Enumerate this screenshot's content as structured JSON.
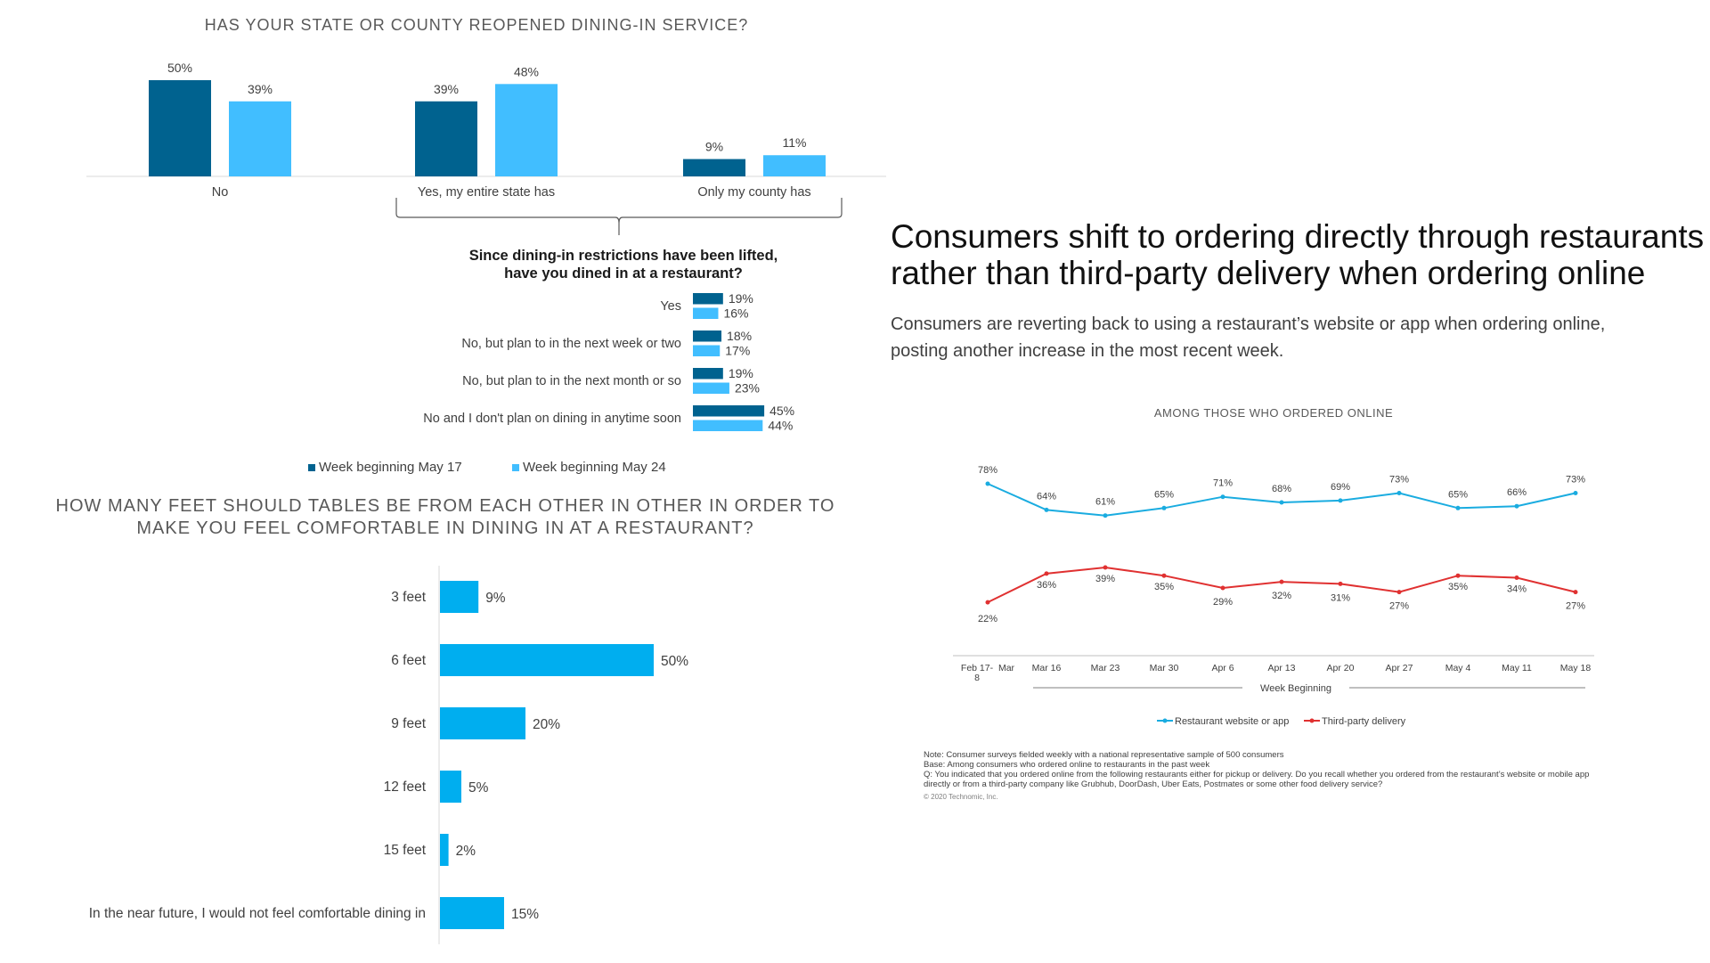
{
  "dining_reopen": {
    "title": "HAS YOUR STATE OR COUNTY REOPENED DINING-IN SERVICE?",
    "legend": [
      "Week beginning May 17",
      "Week beginning May 24"
    ],
    "colors": [
      "#00628F",
      "#41BEFF"
    ]
  },
  "dined_in": {
    "title_line1": "Since dining-in restrictions have been lifted,",
    "title_line2": "have you dined in at a restaurant?"
  },
  "legend_labels": {
    "week1": "Week beginning May 17",
    "week2": "Week beginning May 24"
  },
  "table_distance": {
    "title_line1": "HOW MANY FEET SHOULD TABLES BE FROM EACH OTHER IN OTHER IN ORDER TO",
    "title_line2": "MAKE YOU FEEL COMFORTABLE IN DINING IN AT A RESTAURANT?",
    "color": "#00AEEF"
  },
  "headline": {
    "title_line1": "Consumers shift to ordering directly through restaurants",
    "title_line2": "rather than third-party delivery when ordering online",
    "subtitle_line1": "Consumers are reverting back to using a restaurant’s website or app when ordering online,",
    "subtitle_line2": "posting another increase in the most recent week."
  },
  "online_orders": {
    "title": "AMONG THOSE WHO ORDERED ONLINE",
    "x_axis_label": "Week Beginning",
    "colors": [
      "#1AACE0",
      "#E03131"
    ]
  },
  "notes": {
    "line1": "Note: Consumer surveys fielded weekly with a national representative sample of 500 consumers",
    "line2": "Base: Among consumers who ordered online to restaurants in the past week",
    "line3": "Q: You indicated that you ordered online from the following restaurants either for pickup or delivery.  Do you recall whether you ordered from the restaurant’s website or mobile app",
    "line4": "directly or from a third-party company like Grubhub, DoorDash, Uber Eats, Postmates or some other food delivery service?",
    "copyright": "© 2020 Technomic, Inc."
  },
  "chart_data": [
    {
      "type": "bar",
      "title": "HAS YOUR STATE OR COUNTY REOPENED DINING-IN SERVICE?",
      "categories": [
        "No",
        "Yes, my entire state has",
        "Only my county has"
      ],
      "series": [
        {
          "name": "Week beginning May 17",
          "values": [
            50,
            39,
            9
          ]
        },
        {
          "name": "Week beginning May 24",
          "values": [
            39,
            48,
            11
          ]
        }
      ],
      "unit": "%",
      "legend": "bottom"
    },
    {
      "type": "bar",
      "orientation": "horizontal",
      "title": "Since dining-in restrictions have been lifted, have you dined in at a restaurant?",
      "categories": [
        "Yes",
        "No, but plan to in the next week or two",
        "No, but plan to in the next month or so",
        "No and I don't plan on dining in anytime soon"
      ],
      "series": [
        {
          "name": "Week beginning May 17",
          "values": [
            19,
            18,
            19,
            45
          ]
        },
        {
          "name": "Week beginning May 24",
          "values": [
            16,
            17,
            23,
            44
          ]
        }
      ],
      "unit": "%"
    },
    {
      "type": "bar",
      "orientation": "horizontal",
      "title": "HOW MANY FEET SHOULD TABLES BE FROM EACH OTHER IN OTHER IN ORDER TO MAKE YOU FEEL COMFORTABLE IN DINING IN AT A RESTAURANT?",
      "categories": [
        "3 feet",
        "6 feet",
        "9 feet",
        "12 feet",
        "15 feet",
        "In the near future, I would not feel comfortable dining in"
      ],
      "values": [
        9,
        50,
        20,
        5,
        2,
        15
      ],
      "unit": "%"
    },
    {
      "type": "line",
      "title": "AMONG THOSE WHO ORDERED ONLINE",
      "xlabel": "Week Beginning",
      "x": [
        "Feb 17-Mar 8",
        "Mar 16",
        "Mar 23",
        "Mar 30",
        "Apr 6",
        "Apr 13",
        "Apr 20",
        "Apr 27",
        "May 4",
        "May 11",
        "May 18"
      ],
      "x_display": [
        [
          "Feb 17-",
          "8"
        ],
        [
          "Mar 16"
        ],
        [
          "Mar 23"
        ],
        [
          "Mar 30"
        ],
        [
          "Apr 6"
        ],
        [
          "Apr 13"
        ],
        [
          "Apr 20"
        ],
        [
          "Apr 27"
        ],
        [
          "May 4"
        ],
        [
          "May 11"
        ],
        [
          "May 18"
        ]
      ],
      "x_extra_label": "Mar",
      "series": [
        {
          "name": "Restaurant website or app",
          "values": [
            78,
            64,
            61,
            65,
            71,
            68,
            69,
            73,
            65,
            66,
            73
          ]
        },
        {
          "name": "Third-party delivery",
          "values": [
            22,
            36,
            39,
            35,
            29,
            32,
            31,
            27,
            35,
            34,
            27
          ]
        }
      ],
      "unit": "%",
      "legend": "bottom"
    }
  ]
}
